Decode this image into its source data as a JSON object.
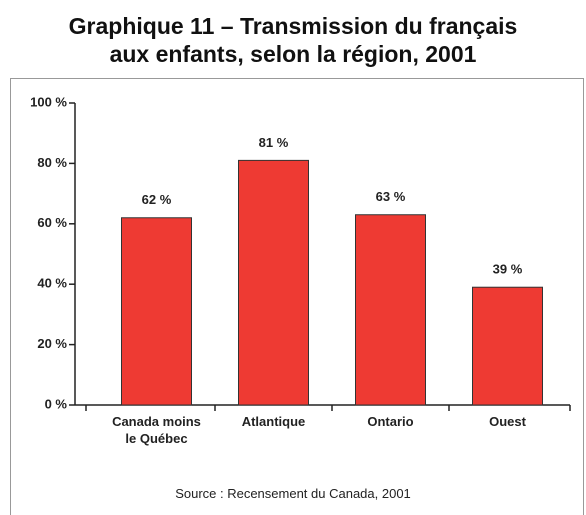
{
  "chart_data": {
    "type": "bar",
    "title": "Graphique 11 – Transmission du français\naux enfants, selon la région, 2001",
    "categories": [
      "Canada moins\nle Québec",
      "Atlantique",
      "Ontario",
      "Ouest"
    ],
    "values": [
      62,
      81,
      63,
      39
    ],
    "value_labels": [
      "62 %",
      "81 %",
      "63 %",
      "39 %"
    ],
    "color": "#ee3a33",
    "ylim": [
      0,
      100
    ],
    "yticks": [
      {
        "value": 0,
        "label": "0 %"
      },
      {
        "value": 20,
        "label": "20 %"
      },
      {
        "value": 40,
        "label": "40 %"
      },
      {
        "value": 60,
        "label": "60 %"
      },
      {
        "value": 80,
        "label": "80 %"
      },
      {
        "value": 100,
        "label": "100 %"
      }
    ],
    "source": "Source : Recensement du Canada, 2001"
  }
}
